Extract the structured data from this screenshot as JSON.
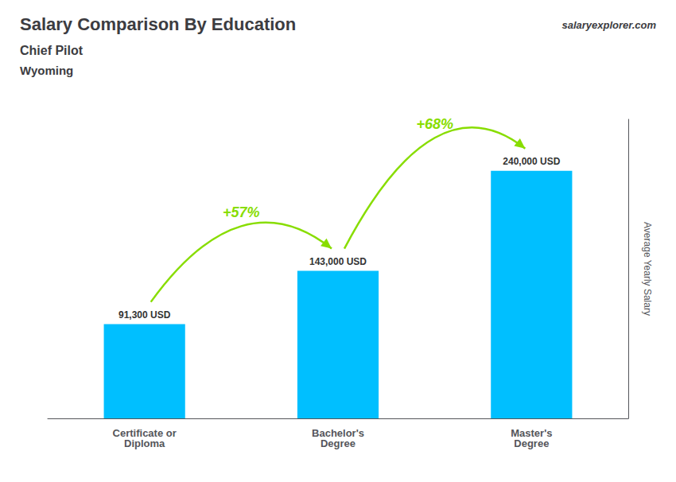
{
  "chart_data": {
    "type": "bar",
    "title": "Salary Comparison By Education",
    "subtitle": "Chief Pilot",
    "annotations": [
      {
        "text": "Wyoming"
      },
      {
        "text": "salaryexplorer.com"
      },
      {
        "text": "+57%",
        "from": "Certificate or\nDiploma",
        "to": "Bachelor's\nDegree",
        "color": "#88DD00"
      },
      {
        "text": "+68%",
        "from": "Bachelor's\nDegree",
        "to": "Master's\nDegree",
        "color": "#88DD00"
      }
    ],
    "ylabel": "Average Yearly Salary",
    "categories": [
      "Certificate or\nDiploma",
      "Bachelor's\nDegree",
      "Master's\nDegree"
    ],
    "values": [
      91300,
      143000,
      240000
    ],
    "value_labels": [
      "91,300 USD",
      "143,000 USD",
      "240,000 USD"
    ],
    "data_labels": true,
    "color": "#00BFFF",
    "ylim": [
      0,
      290000
    ],
    "grid": false,
    "tick_labels": "x"
  }
}
